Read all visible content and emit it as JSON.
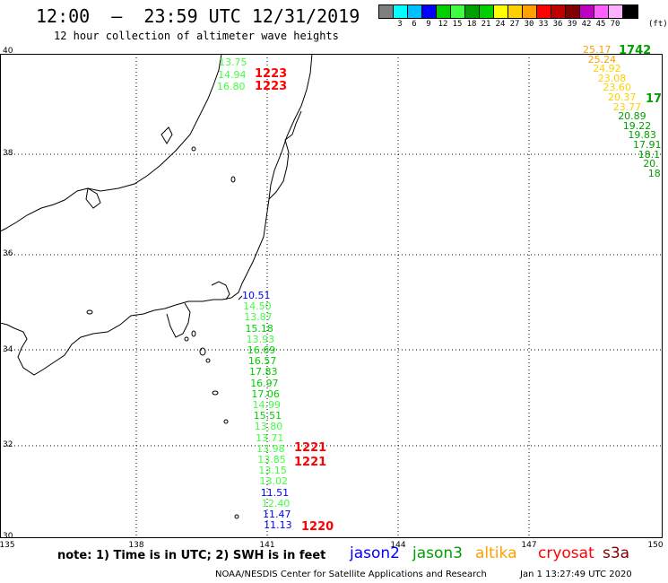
{
  "title": "12:00  —  23:59 UTC 12/31/2019",
  "subtitle": "12 hour collection of altimeter wave heights",
  "colorbar": {
    "colors": [
      "#7f7f7f",
      "#00ffff",
      "#00bfff",
      "#0000ff",
      "#00d000",
      "#40ff40",
      "#00a000",
      "#00d000",
      "#ffff00",
      "#ffd000",
      "#ffa000",
      "#ff0000",
      "#c00000",
      "#800000",
      "#c000c0",
      "#ff60ff",
      "#ffb0ff",
      "#000000"
    ],
    "labels": [
      "3",
      "6",
      "9",
      "12",
      "15",
      "18",
      "21",
      "24",
      "27",
      "30",
      "33",
      "36",
      "39",
      "42",
      "45",
      "70"
    ],
    "unit": "(ft)"
  },
  "latitudes": [
    "40",
    "38",
    "36",
    "34",
    "32",
    "30"
  ],
  "longitudes": [
    "135",
    "138",
    "141",
    "144",
    "147",
    "150"
  ],
  "tracks": {
    "north_track": [
      {
        "value": "13.75",
        "color": "#40ff40"
      },
      {
        "value": "14.94",
        "color": "#40ff40"
      },
      {
        "value": "16.80",
        "color": "#40ff40"
      }
    ],
    "north_times": [
      "1223",
      "1223"
    ],
    "south_track": [
      {
        "value": "10.51",
        "color": "#0000ff"
      },
      {
        "value": "14.50",
        "color": "#40ff40"
      },
      {
        "value": "13.87",
        "color": "#40ff40"
      },
      {
        "value": "15.18",
        "color": "#00d000"
      },
      {
        "value": "13.93",
        "color": "#40ff40"
      },
      {
        "value": "16.69",
        "color": "#00d000"
      },
      {
        "value": "16.57",
        "color": "#00d000"
      },
      {
        "value": "17.83",
        "color": "#00d000"
      },
      {
        "value": "16.97",
        "color": "#00d000"
      },
      {
        "value": "17.06",
        "color": "#00d000"
      },
      {
        "value": "14.99",
        "color": "#40ff40"
      },
      {
        "value": "15.51",
        "color": "#00d000"
      },
      {
        "value": "13.80",
        "color": "#40ff40"
      },
      {
        "value": "13.71",
        "color": "#40ff40"
      },
      {
        "value": "13.98",
        "color": "#40ff40"
      },
      {
        "value": "13.85",
        "color": "#40ff40"
      },
      {
        "value": "13.15",
        "color": "#40ff40"
      },
      {
        "value": "13.02",
        "color": "#40ff40"
      },
      {
        "value": "11.51",
        "color": "#0000ff"
      },
      {
        "value": "12.40",
        "color": "#40ff40"
      },
      {
        "value": "11.47",
        "color": "#0000ff"
      },
      {
        "value": "11.13",
        "color": "#0000ff"
      }
    ],
    "south_times": [
      "1221",
      "1221",
      "1220"
    ],
    "east_track": [
      {
        "value": "25.17",
        "color": "#ffa000"
      },
      {
        "value": "25.24",
        "color": "#ffa000"
      },
      {
        "value": "24.92",
        "color": "#ffd000"
      },
      {
        "value": "23.08",
        "color": "#ffd000"
      },
      {
        "value": "23.60",
        "color": "#ffd000"
      },
      {
        "value": "20.37",
        "color": "#ffd000"
      },
      {
        "value": "23.77",
        "color": "#ffd000"
      },
      {
        "value": "20.89",
        "color": "#00a000"
      },
      {
        "value": "19.22",
        "color": "#00a000"
      },
      {
        "value": "19.83",
        "color": "#00a000"
      },
      {
        "value": "17.91",
        "color": "#00a000"
      },
      {
        "value": "18.1",
        "color": "#00a000"
      },
      {
        "value": "20.",
        "color": "#00a000"
      },
      {
        "value": "18",
        "color": "#00a000"
      }
    ],
    "east_times": [
      "1742",
      "17"
    ]
  },
  "note": "note:  1) Time is in UTC;  2) SWH is in feet",
  "satellites": [
    {
      "name": "jason2",
      "color": "#0000ff"
    },
    {
      "name": "jason3",
      "color": "#00a000"
    },
    {
      "name": "altika",
      "color": "#ffa000"
    },
    {
      "name": "cryosat",
      "color": "#ff0000"
    },
    {
      "name": "s3a",
      "color": "#800000"
    }
  ],
  "footer": "NOAA/NESDIS Center for Satellite Applications and Research",
  "footer_time": "Jan  1 13:27:49 UTC 2020"
}
